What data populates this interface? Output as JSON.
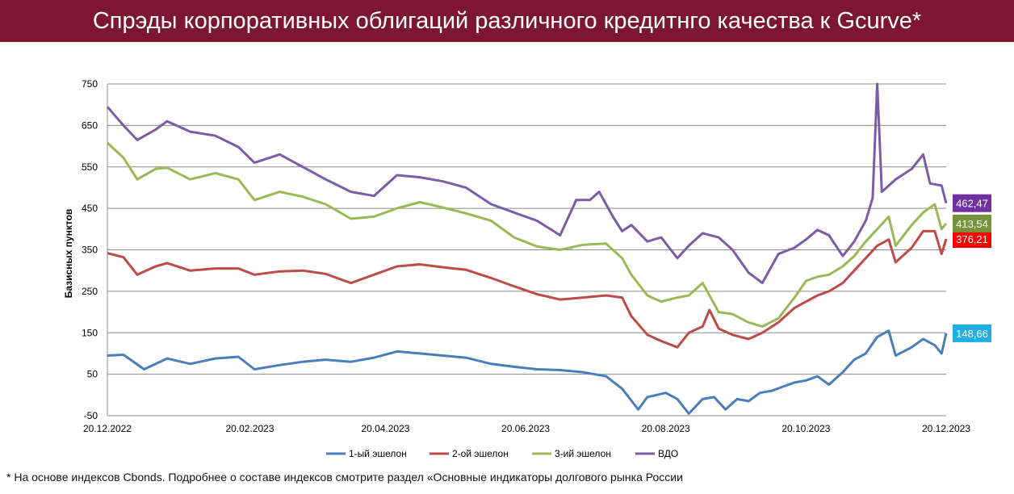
{
  "header": {
    "title": "Спрэды корпоративных облигаций  различного кредитнго качества к Gcurve*"
  },
  "footnote": "* На основе индексов Cbonds. Подробнее о составе индексов смотрите раздел «Основные индикаторы долгового рынка России",
  "chart_data": {
    "type": "line",
    "title": "",
    "xlabel": "",
    "ylabel": "Базисных пунктов",
    "ylim": [
      -50,
      750
    ],
    "yticks": [
      -50,
      50,
      150,
      250,
      350,
      450,
      550,
      650,
      750
    ],
    "xlim": [
      "2022-12-20",
      "2023-12-20"
    ],
    "xticks": [
      "20.12.2022",
      "20.02.2023",
      "20.04.2023",
      "20.06.2023",
      "20.08.2023",
      "20.10.2023",
      "20.12.2023"
    ],
    "grid": true,
    "legend_position": "bottom",
    "series": [
      {
        "name": "1-ый эшелон",
        "color": "#4a7ebb",
        "last_label": "148,66",
        "label_color": "#1fb0e6",
        "points": [
          [
            "2022-12-20",
            95
          ],
          [
            "2022-12-27",
            97
          ],
          [
            "2023-01-05",
            62
          ],
          [
            "2023-01-15",
            88
          ],
          [
            "2023-01-25",
            75
          ],
          [
            "2023-02-05",
            88
          ],
          [
            "2023-02-15",
            92
          ],
          [
            "2023-02-22",
            62
          ],
          [
            "2023-03-05",
            72
          ],
          [
            "2023-03-15",
            80
          ],
          [
            "2023-03-25",
            85
          ],
          [
            "2023-04-05",
            80
          ],
          [
            "2023-04-15",
            90
          ],
          [
            "2023-04-25",
            105
          ],
          [
            "2023-05-05",
            100
          ],
          [
            "2023-05-15",
            95
          ],
          [
            "2023-05-25",
            90
          ],
          [
            "2023-06-05",
            75
          ],
          [
            "2023-06-15",
            68
          ],
          [
            "2023-06-25",
            62
          ],
          [
            "2023-07-05",
            60
          ],
          [
            "2023-07-15",
            55
          ],
          [
            "2023-07-25",
            45
          ],
          [
            "2023-08-01",
            15
          ],
          [
            "2023-08-08",
            -35
          ],
          [
            "2023-08-12",
            -5
          ],
          [
            "2023-08-20",
            5
          ],
          [
            "2023-08-25",
            -10
          ],
          [
            "2023-08-30",
            -45
          ],
          [
            "2023-09-05",
            -10
          ],
          [
            "2023-09-10",
            -5
          ],
          [
            "2023-09-15",
            -35
          ],
          [
            "2023-09-20",
            -10
          ],
          [
            "2023-09-25",
            -15
          ],
          [
            "2023-09-30",
            5
          ],
          [
            "2023-10-05",
            10
          ],
          [
            "2023-10-10",
            20
          ],
          [
            "2023-10-15",
            30
          ],
          [
            "2023-10-20",
            35
          ],
          [
            "2023-10-25",
            45
          ],
          [
            "2023-10-30",
            25
          ],
          [
            "2023-11-05",
            55
          ],
          [
            "2023-11-10",
            85
          ],
          [
            "2023-11-15",
            100
          ],
          [
            "2023-11-20",
            140
          ],
          [
            "2023-11-25",
            155
          ],
          [
            "2023-11-28",
            95
          ],
          [
            "2023-12-05",
            115
          ],
          [
            "2023-12-10",
            135
          ],
          [
            "2023-12-15",
            120
          ],
          [
            "2023-12-18",
            100
          ],
          [
            "2023-12-20",
            148.66
          ]
        ]
      },
      {
        "name": "2-ой эшелон",
        "color": "#be4b48",
        "last_label": "376,21",
        "label_color": "#ff0000",
        "points": [
          [
            "2022-12-20",
            342
          ],
          [
            "2022-12-27",
            332
          ],
          [
            "2023-01-02",
            290
          ],
          [
            "2023-01-10",
            310
          ],
          [
            "2023-01-15",
            318
          ],
          [
            "2023-01-25",
            300
          ],
          [
            "2023-02-05",
            305
          ],
          [
            "2023-02-15",
            305
          ],
          [
            "2023-02-22",
            290
          ],
          [
            "2023-03-05",
            298
          ],
          [
            "2023-03-15",
            300
          ],
          [
            "2023-03-25",
            292
          ],
          [
            "2023-04-05",
            270
          ],
          [
            "2023-04-15",
            290
          ],
          [
            "2023-04-25",
            310
          ],
          [
            "2023-05-05",
            315
          ],
          [
            "2023-05-15",
            308
          ],
          [
            "2023-05-25",
            302
          ],
          [
            "2023-06-05",
            282
          ],
          [
            "2023-06-15",
            262
          ],
          [
            "2023-06-25",
            243
          ],
          [
            "2023-07-05",
            230
          ],
          [
            "2023-07-15",
            235
          ],
          [
            "2023-07-25",
            240
          ],
          [
            "2023-08-01",
            235
          ],
          [
            "2023-08-05",
            190
          ],
          [
            "2023-08-12",
            145
          ],
          [
            "2023-08-18",
            130
          ],
          [
            "2023-08-25",
            115
          ],
          [
            "2023-08-30",
            150
          ],
          [
            "2023-09-05",
            165
          ],
          [
            "2023-09-08",
            205
          ],
          [
            "2023-09-12",
            160
          ],
          [
            "2023-09-18",
            145
          ],
          [
            "2023-09-25",
            135
          ],
          [
            "2023-10-01",
            150
          ],
          [
            "2023-10-08",
            175
          ],
          [
            "2023-10-15",
            210
          ],
          [
            "2023-10-20",
            225
          ],
          [
            "2023-10-25",
            240
          ],
          [
            "2023-10-30",
            250
          ],
          [
            "2023-11-05",
            270
          ],
          [
            "2023-11-10",
            300
          ],
          [
            "2023-11-15",
            330
          ],
          [
            "2023-11-20",
            360
          ],
          [
            "2023-11-25",
            375
          ],
          [
            "2023-11-28",
            320
          ],
          [
            "2023-12-05",
            355
          ],
          [
            "2023-12-10",
            395
          ],
          [
            "2023-12-15",
            395
          ],
          [
            "2023-12-18",
            340
          ],
          [
            "2023-12-20",
            376.21
          ]
        ]
      },
      {
        "name": "3-ий эшелон",
        "color": "#98b954",
        "last_label": "413,54",
        "label_color": "#77933c",
        "points": [
          [
            "2022-12-20",
            608
          ],
          [
            "2022-12-27",
            572
          ],
          [
            "2023-01-02",
            520
          ],
          [
            "2023-01-10",
            545
          ],
          [
            "2023-01-15",
            548
          ],
          [
            "2023-01-25",
            520
          ],
          [
            "2023-02-05",
            535
          ],
          [
            "2023-02-15",
            520
          ],
          [
            "2023-02-22",
            470
          ],
          [
            "2023-03-05",
            490
          ],
          [
            "2023-03-15",
            478
          ],
          [
            "2023-03-25",
            460
          ],
          [
            "2023-04-05",
            425
          ],
          [
            "2023-04-15",
            430
          ],
          [
            "2023-04-25",
            450
          ],
          [
            "2023-05-05",
            465
          ],
          [
            "2023-05-15",
            452
          ],
          [
            "2023-05-25",
            438
          ],
          [
            "2023-06-05",
            420
          ],
          [
            "2023-06-15",
            380
          ],
          [
            "2023-06-25",
            358
          ],
          [
            "2023-07-05",
            350
          ],
          [
            "2023-07-15",
            362
          ],
          [
            "2023-07-25",
            365
          ],
          [
            "2023-08-01",
            330
          ],
          [
            "2023-08-05",
            290
          ],
          [
            "2023-08-12",
            240
          ],
          [
            "2023-08-18",
            225
          ],
          [
            "2023-08-25",
            235
          ],
          [
            "2023-08-30",
            240
          ],
          [
            "2023-09-05",
            270
          ],
          [
            "2023-09-12",
            200
          ],
          [
            "2023-09-18",
            195
          ],
          [
            "2023-09-25",
            175
          ],
          [
            "2023-10-01",
            165
          ],
          [
            "2023-10-08",
            185
          ],
          [
            "2023-10-15",
            235
          ],
          [
            "2023-10-20",
            275
          ],
          [
            "2023-10-25",
            285
          ],
          [
            "2023-10-30",
            290
          ],
          [
            "2023-11-05",
            310
          ],
          [
            "2023-11-10",
            335
          ],
          [
            "2023-11-15",
            370
          ],
          [
            "2023-11-20",
            400
          ],
          [
            "2023-11-25",
            430
          ],
          [
            "2023-11-28",
            360
          ],
          [
            "2023-12-05",
            410
          ],
          [
            "2023-12-10",
            440
          ],
          [
            "2023-12-15",
            460
          ],
          [
            "2023-12-18",
            400
          ],
          [
            "2023-12-20",
            413.54
          ]
        ]
      },
      {
        "name": "ВДО",
        "color": "#7d5ba6",
        "last_label": "462,47",
        "label_color": "#7030a0",
        "points": [
          [
            "2022-12-20",
            695
          ],
          [
            "2022-12-27",
            650
          ],
          [
            "2023-01-02",
            615
          ],
          [
            "2023-01-10",
            640
          ],
          [
            "2023-01-15",
            660
          ],
          [
            "2023-01-25",
            635
          ],
          [
            "2023-02-05",
            625
          ],
          [
            "2023-02-15",
            598
          ],
          [
            "2023-02-22",
            560
          ],
          [
            "2023-03-05",
            580
          ],
          [
            "2023-03-15",
            550
          ],
          [
            "2023-03-25",
            520
          ],
          [
            "2023-04-05",
            490
          ],
          [
            "2023-04-15",
            480
          ],
          [
            "2023-04-25",
            530
          ],
          [
            "2023-05-05",
            525
          ],
          [
            "2023-05-15",
            515
          ],
          [
            "2023-05-25",
            500
          ],
          [
            "2023-06-05",
            460
          ],
          [
            "2023-06-15",
            440
          ],
          [
            "2023-06-25",
            420
          ],
          [
            "2023-07-05",
            385
          ],
          [
            "2023-07-12",
            470
          ],
          [
            "2023-07-18",
            470
          ],
          [
            "2023-07-22",
            490
          ],
          [
            "2023-07-28",
            430
          ],
          [
            "2023-08-01",
            395
          ],
          [
            "2023-08-05",
            410
          ],
          [
            "2023-08-12",
            370
          ],
          [
            "2023-08-18",
            380
          ],
          [
            "2023-08-25",
            330
          ],
          [
            "2023-08-30",
            360
          ],
          [
            "2023-09-05",
            390
          ],
          [
            "2023-09-12",
            380
          ],
          [
            "2023-09-18",
            350
          ],
          [
            "2023-09-25",
            295
          ],
          [
            "2023-10-01",
            270
          ],
          [
            "2023-10-08",
            340
          ],
          [
            "2023-10-15",
            355
          ],
          [
            "2023-10-20",
            375
          ],
          [
            "2023-10-25",
            398
          ],
          [
            "2023-10-30",
            385
          ],
          [
            "2023-11-05",
            335
          ],
          [
            "2023-11-10",
            370
          ],
          [
            "2023-11-15",
            420
          ],
          [
            "2023-11-18",
            475
          ],
          [
            "2023-11-20",
            760
          ],
          [
            "2023-11-22",
            490
          ],
          [
            "2023-11-28",
            520
          ],
          [
            "2023-12-05",
            545
          ],
          [
            "2023-12-10",
            580
          ],
          [
            "2023-12-13",
            510
          ],
          [
            "2023-12-18",
            505
          ],
          [
            "2023-12-20",
            462.47
          ]
        ]
      }
    ]
  }
}
